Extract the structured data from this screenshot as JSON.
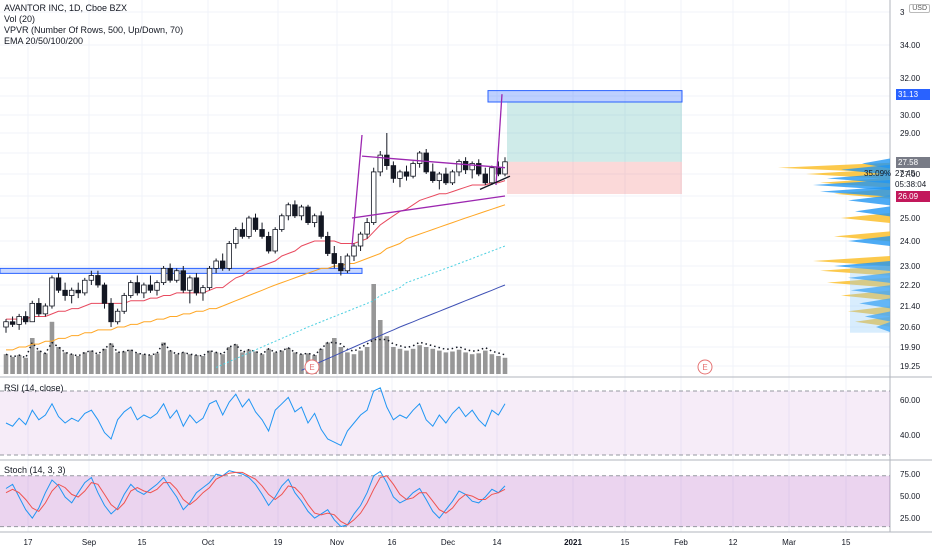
{
  "header": {
    "symbol_line": "AVANTOR INC, 1D, Cboe BZX",
    "volume_line": "Vol (20)",
    "vpvr_line": "VPVR (Number Of Rows, 500, Up/Down, 70)",
    "ema_line": "EMA 20/50/100/200"
  },
  "rsi_label": "RSI (14, close)",
  "stoch_label": "Stoch (14, 3, 3)",
  "currency_badge": "USD",
  "price_tags": {
    "target": "31.13",
    "last": "27.58",
    "stop": "26.09",
    "close_near": "27.45",
    "countdown": "05:38:04",
    "change_pct": "35.09%"
  },
  "colors": {
    "up": "#26a69a",
    "down": "#ef5350",
    "volume": "#8c8c8c",
    "ema20": "#e84a5f",
    "ema50": "#ffa726",
    "ema100": "#4dd0e1",
    "ema200": "#3f51b5",
    "pattern": "#9c27b0",
    "zone": "#2962ff",
    "vpvr_up": "#2196f3",
    "vpvr_down": "#fbc02d",
    "rsi_line": "#2196f3",
    "stoch_k": "#2196f3",
    "stoch_d": "#ef5350",
    "tag_target": "#2962ff",
    "tag_last": "#787b86",
    "tag_stop": "#c2185b"
  },
  "chart_data": [
    {
      "type": "candlestick",
      "price_axis_ticks": [
        "19.25",
        "19.90",
        "20.60",
        "21.40",
        "22.20",
        "23.00",
        "24.00",
        "25.00",
        "26.00",
        "27.00",
        "28.00",
        "29.00",
        "30.00",
        "31.00",
        "32.00",
        "34.00",
        "3"
      ],
      "time_axis_ticks": [
        "17",
        "Sep",
        "15",
        "Oct",
        "19",
        "Nov",
        "16",
        "Dec",
        "14",
        "2021",
        "15",
        "Feb",
        "12",
        "Mar",
        "15"
      ],
      "earnings_markers": [
        "E",
        "E"
      ],
      "ylim": [
        19.0,
        36.0
      ],
      "support_zone": [
        22.75,
        22.9
      ],
      "target_zone": [
        31.0,
        31.3
      ],
      "triangle_upper": [
        [
          29.0,
          27.85
        ]
      ],
      "ohlc": [
        [
          20.6,
          20.9,
          20.4,
          20.8
        ],
        [
          20.8,
          21.0,
          20.6,
          20.7
        ],
        [
          20.7,
          21.1,
          20.5,
          21.0
        ],
        [
          21.0,
          21.2,
          20.7,
          20.8
        ],
        [
          20.8,
          21.6,
          20.8,
          21.5
        ],
        [
          21.5,
          21.7,
          21.0,
          21.1
        ],
        [
          21.1,
          21.5,
          21.0,
          21.4
        ],
        [
          21.4,
          22.6,
          21.3,
          22.5
        ],
        [
          22.5,
          22.7,
          21.9,
          22.0
        ],
        [
          22.0,
          22.3,
          21.6,
          21.8
        ],
        [
          21.8,
          22.1,
          21.5,
          22.0
        ],
        [
          22.0,
          22.3,
          21.7,
          21.9
        ],
        [
          21.9,
          22.5,
          21.8,
          22.4
        ],
        [
          22.4,
          22.8,
          22.2,
          22.6
        ],
        [
          22.6,
          22.8,
          22.1,
          22.2
        ],
        [
          22.2,
          22.3,
          21.3,
          21.5
        ],
        [
          21.5,
          21.7,
          20.6,
          20.8
        ],
        [
          20.8,
          21.3,
          20.7,
          21.2
        ],
        [
          21.2,
          21.9,
          21.1,
          21.8
        ],
        [
          21.8,
          22.4,
          21.7,
          22.3
        ],
        [
          22.3,
          22.6,
          21.8,
          21.9
        ],
        [
          21.9,
          22.3,
          21.7,
          22.2
        ],
        [
          22.2,
          22.6,
          21.9,
          22.0
        ],
        [
          22.0,
          22.4,
          21.8,
          22.3
        ],
        [
          22.3,
          23.0,
          22.2,
          22.9
        ],
        [
          22.9,
          23.1,
          22.3,
          22.4
        ],
        [
          22.4,
          22.9,
          22.3,
          22.8
        ],
        [
          22.8,
          23.0,
          21.9,
          22.0
        ],
        [
          22.0,
          22.6,
          21.5,
          22.5
        ],
        [
          22.5,
          22.7,
          21.8,
          21.9
        ],
        [
          21.9,
          22.2,
          21.6,
          22.1
        ],
        [
          22.1,
          23.0,
          22.0,
          22.9
        ],
        [
          22.9,
          23.3,
          22.7,
          23.2
        ],
        [
          23.2,
          23.5,
          22.8,
          22.9
        ],
        [
          22.9,
          24.0,
          22.8,
          23.9
        ],
        [
          23.9,
          24.6,
          23.7,
          24.5
        ],
        [
          24.5,
          24.8,
          24.1,
          24.2
        ],
        [
          24.2,
          25.1,
          24.1,
          25.0
        ],
        [
          25.0,
          25.2,
          24.4,
          24.5
        ],
        [
          24.5,
          24.8,
          24.1,
          24.2
        ],
        [
          24.2,
          24.4,
          23.5,
          23.6
        ],
        [
          23.6,
          24.6,
          23.5,
          24.5
        ],
        [
          24.5,
          25.2,
          24.4,
          25.1
        ],
        [
          25.1,
          25.7,
          24.9,
          25.6
        ],
        [
          25.6,
          25.8,
          25.0,
          25.1
        ],
        [
          25.1,
          25.6,
          24.9,
          25.5
        ],
        [
          25.5,
          25.6,
          24.7,
          24.8
        ],
        [
          24.8,
          25.2,
          24.6,
          25.1
        ],
        [
          25.1,
          25.3,
          24.1,
          24.2
        ],
        [
          24.2,
          24.4,
          23.4,
          23.5
        ],
        [
          23.5,
          23.8,
          22.9,
          23.1
        ],
        [
          23.1,
          23.4,
          22.6,
          22.8
        ],
        [
          22.8,
          23.5,
          22.7,
          23.4
        ],
        [
          23.4,
          23.9,
          23.2,
          23.8
        ],
        [
          23.8,
          24.4,
          23.6,
          24.3
        ],
        [
          24.3,
          25.0,
          24.1,
          24.8
        ],
        [
          24.8,
          27.3,
          24.7,
          27.1
        ],
        [
          27.1,
          28.1,
          26.9,
          27.9
        ],
        [
          27.9,
          29.0,
          27.2,
          27.4
        ],
        [
          27.4,
          27.6,
          26.6,
          26.8
        ],
        [
          26.8,
          27.2,
          26.4,
          27.1
        ],
        [
          27.1,
          27.4,
          26.7,
          26.9
        ],
        [
          26.9,
          27.6,
          26.8,
          27.5
        ],
        [
          27.5,
          28.1,
          27.3,
          28.0
        ],
        [
          28.0,
          28.2,
          27.0,
          27.1
        ],
        [
          27.1,
          27.5,
          26.6,
          26.7
        ],
        [
          26.7,
          27.1,
          26.3,
          27.0
        ],
        [
          27.0,
          27.3,
          26.5,
          26.6
        ],
        [
          26.6,
          27.2,
          26.5,
          27.1
        ],
        [
          27.1,
          27.7,
          26.9,
          27.6
        ],
        [
          27.6,
          27.8,
          27.0,
          27.2
        ],
        [
          27.2,
          27.6,
          26.8,
          27.5
        ],
        [
          27.5,
          27.7,
          26.9,
          27.0
        ],
        [
          27.0,
          27.3,
          26.5,
          26.6
        ],
        [
          26.6,
          27.4,
          26.5,
          27.3
        ],
        [
          27.3,
          27.6,
          26.9,
          27.0
        ],
        [
          27.0,
          27.8,
          26.9,
          27.58
        ]
      ],
      "volume": [
        22,
        19,
        21,
        18,
        40,
        26,
        23,
        58,
        30,
        24,
        22,
        20,
        24,
        26,
        22,
        28,
        34,
        24,
        25,
        27,
        23,
        22,
        21,
        23,
        35,
        26,
        22,
        24,
        22,
        21,
        20,
        26,
        24,
        22,
        30,
        33,
        24,
        27,
        25,
        22,
        28,
        24,
        26,
        29,
        24,
        22,
        23,
        21,
        28,
        35,
        40,
        30,
        24,
        22,
        26,
        30,
        100,
        60,
        42,
        30,
        28,
        26,
        28,
        32,
        30,
        28,
        26,
        24,
        25,
        27,
        24,
        22,
        23,
        26,
        22,
        20,
        18
      ],
      "ema20": [
        20.9,
        20.9,
        20.9,
        20.9,
        21.0,
        21.0,
        21.0,
        21.1,
        21.2,
        21.2,
        21.3,
        21.3,
        21.4,
        21.5,
        21.5,
        21.5,
        21.5,
        21.5,
        21.5,
        21.6,
        21.6,
        21.6,
        21.7,
        21.7,
        21.8,
        21.8,
        21.9,
        21.9,
        21.9,
        21.9,
        21.9,
        22.0,
        22.1,
        22.1,
        22.3,
        22.5,
        22.6,
        22.8,
        22.9,
        23.0,
        23.1,
        23.2,
        23.4,
        23.5,
        23.6,
        23.8,
        23.9,
        24.0,
        24.0,
        24.0,
        24.0,
        23.9,
        23.9,
        23.9,
        24.0,
        24.1,
        24.4,
        24.7,
        24.9,
        25.1,
        25.3,
        25.4,
        25.6,
        25.8,
        25.9,
        26.0,
        26.1,
        26.1,
        26.2,
        26.3,
        26.4,
        26.5,
        26.5,
        26.5,
        26.6,
        26.6,
        26.7
      ],
      "ema50": [
        19.8,
        19.8,
        19.9,
        19.9,
        20.0,
        20.0,
        20.1,
        20.1,
        20.2,
        20.2,
        20.3,
        20.3,
        20.4,
        20.4,
        20.5,
        20.5,
        20.5,
        20.6,
        20.6,
        20.7,
        20.7,
        20.8,
        20.8,
        20.9,
        20.9,
        21.0,
        21.0,
        21.1,
        21.1,
        21.2,
        21.2,
        21.3,
        21.3,
        21.4,
        21.5,
        21.6,
        21.7,
        21.8,
        21.9,
        22.0,
        22.1,
        22.2,
        22.3,
        22.4,
        22.5,
        22.6,
        22.7,
        22.8,
        22.9,
        22.9,
        23.0,
        23.0,
        23.1,
        23.1,
        23.2,
        23.3,
        23.4,
        23.5,
        23.7,
        23.8,
        23.9,
        24.1,
        24.2,
        24.3,
        24.4,
        24.5,
        24.6,
        24.7,
        24.8,
        24.9,
        25.0,
        25.1,
        25.2,
        25.3,
        25.4,
        25.5,
        25.6
      ],
      "ema100": [
        null,
        null,
        null,
        null,
        null,
        null,
        null,
        null,
        null,
        null,
        null,
        null,
        null,
        null,
        null,
        null,
        null,
        null,
        null,
        null,
        null,
        null,
        null,
        null,
        null,
        null,
        null,
        null,
        null,
        null,
        null,
        null,
        19.2,
        19.3,
        19.4,
        19.5,
        19.6,
        19.7,
        19.8,
        19.9,
        20.0,
        20.1,
        20.2,
        20.3,
        20.4,
        20.5,
        20.6,
        20.7,
        20.8,
        20.9,
        21.0,
        21.1,
        21.2,
        21.3,
        21.4,
        21.5,
        21.6,
        21.8,
        21.9,
        22.0,
        22.1,
        22.3,
        22.4,
        22.5,
        22.6,
        22.7,
        22.8,
        22.9,
        23.0,
        23.1,
        23.2,
        23.3,
        23.4,
        23.5,
        23.6,
        23.7,
        23.8
      ],
      "ema200": [
        null,
        null,
        null,
        null,
        null,
        null,
        null,
        null,
        null,
        null,
        null,
        null,
        null,
        null,
        null,
        null,
        null,
        null,
        null,
        null,
        null,
        null,
        null,
        null,
        null,
        null,
        null,
        null,
        null,
        null,
        null,
        null,
        null,
        null,
        null,
        null,
        null,
        null,
        null,
        null,
        null,
        null,
        null,
        null,
        null,
        19.1,
        19.2,
        19.3,
        19.4,
        19.5,
        19.6,
        19.7,
        19.8,
        19.9,
        20.0,
        20.1,
        20.2,
        20.3,
        20.4,
        20.5,
        20.6,
        20.7,
        20.8,
        20.9,
        21.0,
        21.1,
        21.2,
        21.3,
        21.4,
        21.5,
        21.6,
        21.7,
        21.8,
        21.9,
        22.0,
        22.1,
        22.2
      ],
      "vpvr_levels_up": [
        [
          26.2,
          0.5
        ],
        [
          26.5,
          0.55
        ],
        [
          26.8,
          0.45
        ],
        [
          27.2,
          0.35
        ],
        [
          27.5,
          0.2
        ],
        [
          24.0,
          0.3
        ],
        [
          23.0,
          0.4
        ],
        [
          22.5,
          0.3
        ],
        [
          22.0,
          0.28
        ],
        [
          21.5,
          0.22
        ],
        [
          21.0,
          0.18
        ],
        [
          20.6,
          0.1
        ],
        [
          25.3,
          0.25
        ],
        [
          25.8,
          0.3
        ]
      ],
      "vpvr_levels_down": [
        [
          27.3,
          0.8
        ],
        [
          27.0,
          0.6
        ],
        [
          26.6,
          0.5
        ],
        [
          26.1,
          0.4
        ],
        [
          25.0,
          0.35
        ],
        [
          24.2,
          0.4
        ],
        [
          23.2,
          0.55
        ],
        [
          22.8,
          0.5
        ],
        [
          22.3,
          0.45
        ],
        [
          21.8,
          0.35
        ],
        [
          21.2,
          0.3
        ],
        [
          20.8,
          0.25
        ]
      ]
    },
    {
      "type": "line",
      "title": "RSI (14, close)",
      "ylim": [
        30,
        75
      ],
      "y_ticks": [
        "60.00",
        "40.00"
      ],
      "values": [
        50,
        48,
        53,
        49,
        58,
        52,
        55,
        62,
        54,
        50,
        53,
        51,
        56,
        58,
        52,
        44,
        40,
        52,
        57,
        60,
        52,
        55,
        53,
        56,
        62,
        53,
        58,
        48,
        55,
        50,
        53,
        62,
        64,
        55,
        63,
        68,
        60,
        65,
        57,
        52,
        45,
        58,
        62,
        66,
        57,
        60,
        50,
        56,
        46,
        40,
        38,
        36,
        45,
        50,
        55,
        58,
        70,
        72,
        60,
        52,
        55,
        53,
        58,
        62,
        52,
        48,
        55,
        50,
        56,
        60,
        54,
        58,
        52,
        48,
        58,
        55,
        62
      ]
    },
    {
      "type": "line",
      "title": "Stoch (14, 3, 3)",
      "ylim": [
        15,
        90
      ],
      "y_ticks": [
        "75.00",
        "50.00",
        "25.00"
      ],
      "k": [
        65,
        70,
        55,
        40,
        30,
        42,
        60,
        75,
        68,
        55,
        48,
        60,
        72,
        78,
        60,
        45,
        35,
        42,
        58,
        70,
        62,
        58,
        64,
        70,
        78,
        66,
        55,
        40,
        48,
        60,
        66,
        72,
        82,
        80,
        86,
        84,
        82,
        78,
        70,
        58,
        45,
        55,
        68,
        76,
        60,
        50,
        38,
        30,
        35,
        40,
        28,
        20,
        22,
        35,
        45,
        60,
        80,
        85,
        72,
        55,
        48,
        52,
        60,
        65,
        52,
        38,
        30,
        40,
        50,
        62,
        58,
        50,
        48,
        55,
        64,
        60,
        68
      ],
      "d": [
        60,
        64,
        60,
        52,
        42,
        38,
        48,
        62,
        70,
        66,
        58,
        55,
        62,
        72,
        70,
        58,
        46,
        40,
        48,
        62,
        66,
        62,
        60,
        64,
        72,
        72,
        64,
        52,
        46,
        52,
        60,
        66,
        76,
        80,
        83,
        84,
        84,
        80,
        76,
        68,
        58,
        52,
        58,
        68,
        66,
        58,
        46,
        36,
        34,
        36,
        34,
        26,
        22,
        28,
        36,
        48,
        64,
        78,
        80,
        70,
        58,
        52,
        54,
        60,
        60,
        50,
        40,
        36,
        42,
        52,
        58,
        56,
        52,
        52,
        58,
        60,
        64
      ]
    }
  ]
}
